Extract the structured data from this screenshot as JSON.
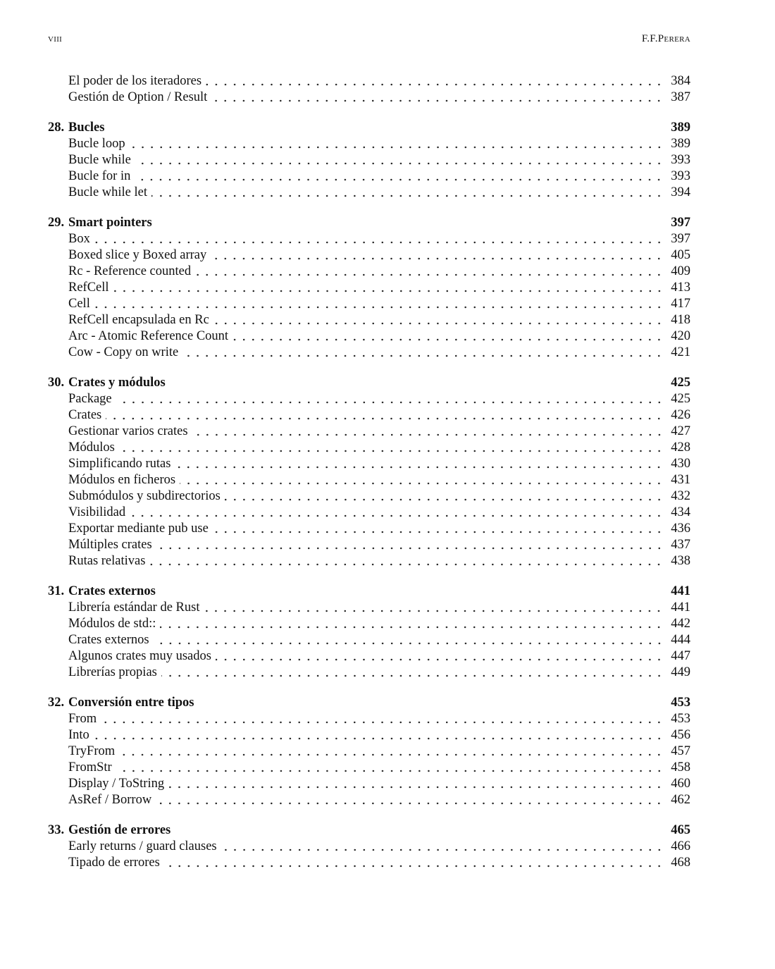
{
  "header": {
    "page_label": "viii",
    "author": "F.F.Perera"
  },
  "toc": [
    {
      "sections": [
        {
          "title": "El poder de los iteradores",
          "page": "384"
        },
        {
          "title": "Gestión de Option / Result",
          "page": "387"
        }
      ]
    },
    {
      "number": "28.",
      "title": "Bucles",
      "page": "389",
      "sections": [
        {
          "title": "Bucle loop",
          "page": "389"
        },
        {
          "title": "Bucle while",
          "page": "393"
        },
        {
          "title": "Bucle for in",
          "page": "393"
        },
        {
          "title": "Bucle while let",
          "page": "394"
        }
      ]
    },
    {
      "number": "29.",
      "title": "Smart pointers",
      "page": "397",
      "sections": [
        {
          "title": "Box",
          "page": "397"
        },
        {
          "title": "Boxed slice y Boxed array",
          "page": "405"
        },
        {
          "title": "Rc - Reference counted",
          "page": "409"
        },
        {
          "title": "RefCell",
          "page": "413"
        },
        {
          "title": "Cell",
          "page": "417"
        },
        {
          "title": "RefCell encapsulada en Rc",
          "page": "418"
        },
        {
          "title": "Arc - Atomic Reference Count",
          "page": "420"
        },
        {
          "title": "Cow - Copy on write",
          "page": "421"
        }
      ]
    },
    {
      "number": "30.",
      "title": "Crates y módulos",
      "page": "425",
      "sections": [
        {
          "title": "Package",
          "page": "425"
        },
        {
          "title": "Crates",
          "page": "426"
        },
        {
          "title": "Gestionar varios crates",
          "page": "427"
        },
        {
          "title": "Módulos",
          "page": "428"
        },
        {
          "title": "Simplificando rutas",
          "page": "430"
        },
        {
          "title": "Módulos en ficheros",
          "page": "431"
        },
        {
          "title": "Submódulos y subdirectorios",
          "page": "432"
        },
        {
          "title": "Visibilidad",
          "page": "434"
        },
        {
          "title": "Exportar mediante pub use",
          "page": "436"
        },
        {
          "title": "Múltiples crates",
          "page": "437"
        },
        {
          "title": "Rutas relativas",
          "page": "438"
        }
      ]
    },
    {
      "number": "31.",
      "title": "Crates externos",
      "page": "441",
      "sections": [
        {
          "title": "Librería estándar de Rust",
          "page": "441"
        },
        {
          "title": "Módulos de std::",
          "page": "442"
        },
        {
          "title": "Crates externos",
          "page": "444"
        },
        {
          "title": "Algunos crates muy usados",
          "page": "447"
        },
        {
          "title": "Librerías propias",
          "page": "449"
        }
      ]
    },
    {
      "number": "32.",
      "title": "Conversión entre tipos",
      "page": "453",
      "sections": [
        {
          "title": "From",
          "page": "453"
        },
        {
          "title": "Into",
          "page": "456"
        },
        {
          "title": "TryFrom",
          "page": "457"
        },
        {
          "title": "FromStr",
          "page": "458"
        },
        {
          "title": "Display / ToString",
          "page": "460"
        },
        {
          "title": "AsRef / Borrow",
          "page": "462"
        }
      ]
    },
    {
      "number": "33.",
      "title": "Gestión de errores",
      "page": "465",
      "sections": [
        {
          "title": "Early returns / guard clauses",
          "page": "466"
        },
        {
          "title": "Tipado de errores",
          "page": "468"
        }
      ]
    }
  ]
}
